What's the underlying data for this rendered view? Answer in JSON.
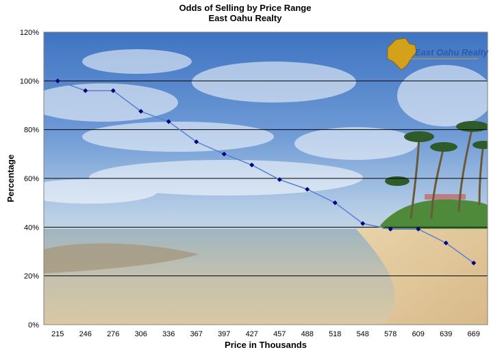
{
  "chart_data": {
    "type": "line",
    "title": "Odds of Selling by Price Range",
    "subtitle": "East Oahu Realty",
    "xlabel": "Price in Thousands",
    "ylabel": "Percentage",
    "categories": [
      "215",
      "246",
      "276",
      "306",
      "336",
      "367",
      "397",
      "427",
      "457",
      "488",
      "518",
      "548",
      "578",
      "609",
      "639",
      "669"
    ],
    "series": [
      {
        "values": [
          100,
          96,
          96,
          87.5,
          83.3,
          75,
          70,
          65.5,
          59.5,
          55.5,
          50,
          41.5,
          39.2,
          39.2,
          33.5,
          25.3
        ]
      }
    ],
    "ylim": [
      0,
      120
    ],
    "yticks": [
      0,
      20,
      40,
      60,
      80,
      100,
      120
    ],
    "ytick_labels": [
      "0%",
      "20%",
      "40%",
      "60%",
      "80%",
      "100%",
      "120%"
    ],
    "grid": true,
    "line_color": "#5b7fcf",
    "marker_color": "#000080"
  },
  "watermark": {
    "brand": "East Oahu Realty",
    "logo_color": "#d4a21a"
  }
}
